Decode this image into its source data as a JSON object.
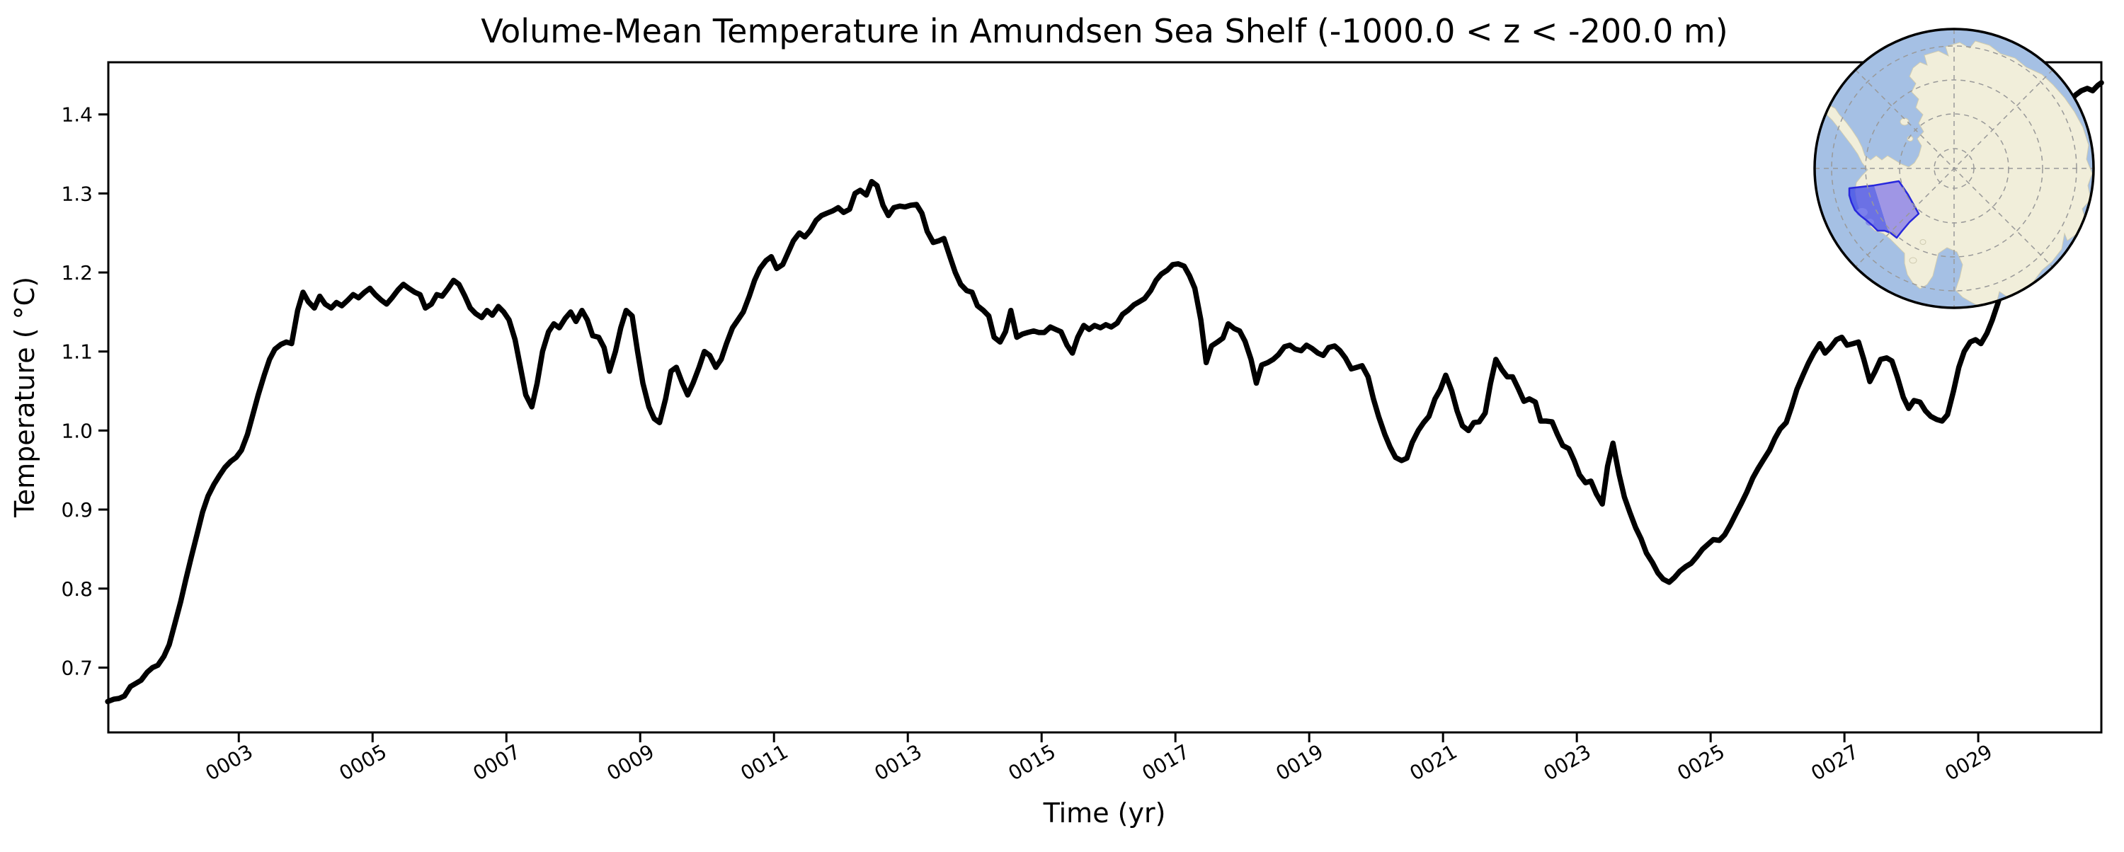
{
  "title": "Volume-Mean Temperature in Amundsen Sea Shelf (-1000.0 < z < -200.0 m)",
  "xlabel": "Time (yr)",
  "ylabel": "Temperature ( °C)",
  "chart_data": {
    "type": "line",
    "title": "Volume-Mean Temperature in Amundsen Sea Shelf (-1000.0 < z < -200.0 m)",
    "xlabel": "Time (yr)",
    "ylabel": "Temperature (°C)",
    "legend": null,
    "grid": false,
    "line_color": "#000000",
    "line_width": 7.5,
    "xlim": [
      1.05,
      30.84
    ],
    "ylim": [
      0.618,
      1.466
    ],
    "x_ticks": {
      "years": [
        3,
        5,
        7,
        9,
        11,
        13,
        15,
        17,
        19,
        21,
        23,
        25,
        27,
        29
      ],
      "labels": [
        "0003",
        "0005",
        "0007",
        "0009",
        "0011",
        "0013",
        "0015",
        "0017",
        "0019",
        "0021",
        "0023",
        "0025",
        "0027",
        "0029"
      ],
      "rotation_deg": -30
    },
    "y_ticks": {
      "values": [
        0.7,
        0.8,
        0.9,
        1.0,
        1.1,
        1.2,
        1.3,
        1.4
      ],
      "labels": [
        "0.7",
        "0.8",
        "0.9",
        "1.0",
        "1.1",
        "1.2",
        "1.3",
        "1.4"
      ]
    },
    "series": [
      [
        1.04,
        0.657
      ],
      [
        1.13,
        0.66
      ],
      [
        1.21,
        0.661
      ],
      [
        1.29,
        0.664
      ],
      [
        1.38,
        0.676
      ],
      [
        1.46,
        0.68
      ],
      [
        1.54,
        0.684
      ],
      [
        1.63,
        0.694
      ],
      [
        1.71,
        0.7
      ],
      [
        1.79,
        0.703
      ],
      [
        1.88,
        0.714
      ],
      [
        1.96,
        0.729
      ],
      [
        2.04,
        0.754
      ],
      [
        2.13,
        0.783
      ],
      [
        2.21,
        0.812
      ],
      [
        2.29,
        0.84
      ],
      [
        2.38,
        0.87
      ],
      [
        2.46,
        0.897
      ],
      [
        2.54,
        0.917
      ],
      [
        2.63,
        0.932
      ],
      [
        2.71,
        0.943
      ],
      [
        2.79,
        0.953
      ],
      [
        2.88,
        0.961
      ],
      [
        2.96,
        0.966
      ],
      [
        3.04,
        0.975
      ],
      [
        3.13,
        0.995
      ],
      [
        3.21,
        1.02
      ],
      [
        3.29,
        1.045
      ],
      [
        3.38,
        1.07
      ],
      [
        3.46,
        1.09
      ],
      [
        3.54,
        1.103
      ],
      [
        3.63,
        1.109
      ],
      [
        3.71,
        1.112
      ],
      [
        3.79,
        1.11
      ],
      [
        3.88,
        1.152
      ],
      [
        3.96,
        1.175
      ],
      [
        4.04,
        1.163
      ],
      [
        4.13,
        1.155
      ],
      [
        4.21,
        1.17
      ],
      [
        4.29,
        1.16
      ],
      [
        4.38,
        1.155
      ],
      [
        4.46,
        1.162
      ],
      [
        4.54,
        1.158
      ],
      [
        4.63,
        1.165
      ],
      [
        4.71,
        1.172
      ],
      [
        4.79,
        1.168
      ],
      [
        4.88,
        1.175
      ],
      [
        4.96,
        1.18
      ],
      [
        5.04,
        1.172
      ],
      [
        5.13,
        1.165
      ],
      [
        5.21,
        1.16
      ],
      [
        5.29,
        1.168
      ],
      [
        5.38,
        1.178
      ],
      [
        5.46,
        1.185
      ],
      [
        5.54,
        1.18
      ],
      [
        5.63,
        1.175
      ],
      [
        5.71,
        1.172
      ],
      [
        5.79,
        1.155
      ],
      [
        5.88,
        1.16
      ],
      [
        5.96,
        1.172
      ],
      [
        6.04,
        1.17
      ],
      [
        6.13,
        1.18
      ],
      [
        6.21,
        1.19
      ],
      [
        6.29,
        1.185
      ],
      [
        6.38,
        1.17
      ],
      [
        6.46,
        1.155
      ],
      [
        6.54,
        1.148
      ],
      [
        6.63,
        1.143
      ],
      [
        6.71,
        1.152
      ],
      [
        6.79,
        1.146
      ],
      [
        6.88,
        1.157
      ],
      [
        6.96,
        1.15
      ],
      [
        7.04,
        1.14
      ],
      [
        7.13,
        1.115
      ],
      [
        7.21,
        1.08
      ],
      [
        7.29,
        1.045
      ],
      [
        7.38,
        1.03
      ],
      [
        7.46,
        1.06
      ],
      [
        7.54,
        1.1
      ],
      [
        7.63,
        1.125
      ],
      [
        7.71,
        1.135
      ],
      [
        7.79,
        1.13
      ],
      [
        7.88,
        1.142
      ],
      [
        7.96,
        1.15
      ],
      [
        8.04,
        1.138
      ],
      [
        8.13,
        1.152
      ],
      [
        8.21,
        1.14
      ],
      [
        8.29,
        1.12
      ],
      [
        8.38,
        1.118
      ],
      [
        8.46,
        1.105
      ],
      [
        8.54,
        1.075
      ],
      [
        8.63,
        1.1
      ],
      [
        8.71,
        1.13
      ],
      [
        8.79,
        1.152
      ],
      [
        8.88,
        1.145
      ],
      [
        8.96,
        1.1
      ],
      [
        9.04,
        1.06
      ],
      [
        9.13,
        1.03
      ],
      [
        9.21,
        1.015
      ],
      [
        9.29,
        1.01
      ],
      [
        9.38,
        1.04
      ],
      [
        9.46,
        1.075
      ],
      [
        9.54,
        1.08
      ],
      [
        9.63,
        1.06
      ],
      [
        9.71,
        1.045
      ],
      [
        9.79,
        1.06
      ],
      [
        9.88,
        1.08
      ],
      [
        9.96,
        1.1
      ],
      [
        10.04,
        1.095
      ],
      [
        10.13,
        1.08
      ],
      [
        10.21,
        1.09
      ],
      [
        10.29,
        1.11
      ],
      [
        10.38,
        1.13
      ],
      [
        10.46,
        1.14
      ],
      [
        10.54,
        1.15
      ],
      [
        10.63,
        1.17
      ],
      [
        10.71,
        1.19
      ],
      [
        10.79,
        1.205
      ],
      [
        10.88,
        1.215
      ],
      [
        10.96,
        1.22
      ],
      [
        11.04,
        1.205
      ],
      [
        11.13,
        1.21
      ],
      [
        11.21,
        1.225
      ],
      [
        11.29,
        1.24
      ],
      [
        11.38,
        1.25
      ],
      [
        11.46,
        1.245
      ],
      [
        11.54,
        1.253
      ],
      [
        11.63,
        1.266
      ],
      [
        11.71,
        1.272
      ],
      [
        11.79,
        1.275
      ],
      [
        11.88,
        1.278
      ],
      [
        11.96,
        1.282
      ],
      [
        12.04,
        1.276
      ],
      [
        12.13,
        1.28
      ],
      [
        12.21,
        1.3
      ],
      [
        12.29,
        1.304
      ],
      [
        12.38,
        1.298
      ],
      [
        12.46,
        1.315
      ],
      [
        12.54,
        1.31
      ],
      [
        12.63,
        1.285
      ],
      [
        12.71,
        1.272
      ],
      [
        12.79,
        1.282
      ],
      [
        12.88,
        1.284
      ],
      [
        12.96,
        1.283
      ],
      [
        13.04,
        1.285
      ],
      [
        13.13,
        1.286
      ],
      [
        13.21,
        1.275
      ],
      [
        13.29,
        1.252
      ],
      [
        13.38,
        1.238
      ],
      [
        13.46,
        1.24
      ],
      [
        13.54,
        1.243
      ],
      [
        13.63,
        1.22
      ],
      [
        13.71,
        1.2
      ],
      [
        13.79,
        1.185
      ],
      [
        13.88,
        1.177
      ],
      [
        13.96,
        1.175
      ],
      [
        14.04,
        1.158
      ],
      [
        14.13,
        1.152
      ],
      [
        14.21,
        1.145
      ],
      [
        14.29,
        1.118
      ],
      [
        14.38,
        1.112
      ],
      [
        14.46,
        1.125
      ],
      [
        14.54,
        1.152
      ],
      [
        14.63,
        1.118
      ],
      [
        14.71,
        1.122
      ],
      [
        14.79,
        1.124
      ],
      [
        14.88,
        1.126
      ],
      [
        14.96,
        1.124
      ],
      [
        15.04,
        1.124
      ],
      [
        15.13,
        1.131
      ],
      [
        15.21,
        1.128
      ],
      [
        15.29,
        1.125
      ],
      [
        15.38,
        1.108
      ],
      [
        15.46,
        1.098
      ],
      [
        15.54,
        1.118
      ],
      [
        15.63,
        1.133
      ],
      [
        15.71,
        1.128
      ],
      [
        15.79,
        1.133
      ],
      [
        15.88,
        1.13
      ],
      [
        15.96,
        1.134
      ],
      [
        16.04,
        1.131
      ],
      [
        16.13,
        1.136
      ],
      [
        16.21,
        1.147
      ],
      [
        16.29,
        1.152
      ],
      [
        16.38,
        1.159
      ],
      [
        16.46,
        1.163
      ],
      [
        16.54,
        1.167
      ],
      [
        16.63,
        1.177
      ],
      [
        16.71,
        1.19
      ],
      [
        16.79,
        1.198
      ],
      [
        16.88,
        1.203
      ],
      [
        16.96,
        1.21
      ],
      [
        17.04,
        1.211
      ],
      [
        17.13,
        1.208
      ],
      [
        17.21,
        1.196
      ],
      [
        17.29,
        1.18
      ],
      [
        17.38,
        1.14
      ],
      [
        17.46,
        1.086
      ],
      [
        17.54,
        1.107
      ],
      [
        17.63,
        1.112
      ],
      [
        17.71,
        1.117
      ],
      [
        17.79,
        1.135
      ],
      [
        17.88,
        1.129
      ],
      [
        17.96,
        1.126
      ],
      [
        18.04,
        1.113
      ],
      [
        18.13,
        1.09
      ],
      [
        18.21,
        1.06
      ],
      [
        18.29,
        1.083
      ],
      [
        18.38,
        1.086
      ],
      [
        18.46,
        1.09
      ],
      [
        18.54,
        1.096
      ],
      [
        18.63,
        1.106
      ],
      [
        18.71,
        1.108
      ],
      [
        18.79,
        1.103
      ],
      [
        18.88,
        1.101
      ],
      [
        18.96,
        1.108
      ],
      [
        19.04,
        1.104
      ],
      [
        19.13,
        1.098
      ],
      [
        19.21,
        1.095
      ],
      [
        19.29,
        1.105
      ],
      [
        19.38,
        1.107
      ],
      [
        19.46,
        1.101
      ],
      [
        19.54,
        1.092
      ],
      [
        19.63,
        1.078
      ],
      [
        19.71,
        1.08
      ],
      [
        19.79,
        1.082
      ],
      [
        19.88,
        1.068
      ],
      [
        19.96,
        1.04
      ],
      [
        20.04,
        1.017
      ],
      [
        20.13,
        0.995
      ],
      [
        20.21,
        0.979
      ],
      [
        20.29,
        0.966
      ],
      [
        20.38,
        0.962
      ],
      [
        20.46,
        0.965
      ],
      [
        20.54,
        0.985
      ],
      [
        20.63,
        1.0
      ],
      [
        20.71,
        1.01
      ],
      [
        20.79,
        1.018
      ],
      [
        20.88,
        1.04
      ],
      [
        20.96,
        1.052
      ],
      [
        21.04,
        1.07
      ],
      [
        21.13,
        1.05
      ],
      [
        21.21,
        1.025
      ],
      [
        21.29,
        1.006
      ],
      [
        21.38,
        1.0
      ],
      [
        21.46,
        1.01
      ],
      [
        21.54,
        1.011
      ],
      [
        21.63,
        1.022
      ],
      [
        21.71,
        1.06
      ],
      [
        21.79,
        1.09
      ],
      [
        21.88,
        1.077
      ],
      [
        21.96,
        1.068
      ],
      [
        22.04,
        1.068
      ],
      [
        22.13,
        1.052
      ],
      [
        22.21,
        1.037
      ],
      [
        22.29,
        1.04
      ],
      [
        22.38,
        1.036
      ],
      [
        22.46,
        1.012
      ],
      [
        22.54,
        1.012
      ],
      [
        22.63,
        1.011
      ],
      [
        22.71,
        0.995
      ],
      [
        22.79,
        0.981
      ],
      [
        22.88,
        0.977
      ],
      [
        22.96,
        0.962
      ],
      [
        23.04,
        0.944
      ],
      [
        23.13,
        0.934
      ],
      [
        23.21,
        0.936
      ],
      [
        23.29,
        0.92
      ],
      [
        23.38,
        0.907
      ],
      [
        23.46,
        0.955
      ],
      [
        23.54,
        0.984
      ],
      [
        23.63,
        0.945
      ],
      [
        23.71,
        0.916
      ],
      [
        23.79,
        0.897
      ],
      [
        23.88,
        0.877
      ],
      [
        23.96,
        0.863
      ],
      [
        24.04,
        0.845
      ],
      [
        24.13,
        0.833
      ],
      [
        24.21,
        0.82
      ],
      [
        24.29,
        0.812
      ],
      [
        24.38,
        0.808
      ],
      [
        24.46,
        0.814
      ],
      [
        24.54,
        0.822
      ],
      [
        24.63,
        0.828
      ],
      [
        24.71,
        0.832
      ],
      [
        24.79,
        0.84
      ],
      [
        24.88,
        0.85
      ],
      [
        24.96,
        0.856
      ],
      [
        25.04,
        0.862
      ],
      [
        25.13,
        0.861
      ],
      [
        25.21,
        0.868
      ],
      [
        25.29,
        0.88
      ],
      [
        25.38,
        0.895
      ],
      [
        25.46,
        0.908
      ],
      [
        25.54,
        0.922
      ],
      [
        25.63,
        0.94
      ],
      [
        25.71,
        0.952
      ],
      [
        25.79,
        0.963
      ],
      [
        25.88,
        0.975
      ],
      [
        25.96,
        0.99
      ],
      [
        26.04,
        1.002
      ],
      [
        26.13,
        1.01
      ],
      [
        26.21,
        1.03
      ],
      [
        26.29,
        1.052
      ],
      [
        26.38,
        1.07
      ],
      [
        26.46,
        1.085
      ],
      [
        26.54,
        1.098
      ],
      [
        26.63,
        1.11
      ],
      [
        26.71,
        1.098
      ],
      [
        26.79,
        1.105
      ],
      [
        26.88,
        1.115
      ],
      [
        26.96,
        1.118
      ],
      [
        27.04,
        1.108
      ],
      [
        27.13,
        1.11
      ],
      [
        27.21,
        1.112
      ],
      [
        27.29,
        1.09
      ],
      [
        27.38,
        1.062
      ],
      [
        27.46,
        1.075
      ],
      [
        27.54,
        1.09
      ],
      [
        27.63,
        1.092
      ],
      [
        27.71,
        1.088
      ],
      [
        27.79,
        1.068
      ],
      [
        27.88,
        1.042
      ],
      [
        27.96,
        1.028
      ],
      [
        28.04,
        1.038
      ],
      [
        28.13,
        1.036
      ],
      [
        28.21,
        1.025
      ],
      [
        28.29,
        1.018
      ],
      [
        28.38,
        1.014
      ],
      [
        28.46,
        1.012
      ],
      [
        28.54,
        1.02
      ],
      [
        28.63,
        1.05
      ],
      [
        28.71,
        1.08
      ],
      [
        28.79,
        1.1
      ],
      [
        28.88,
        1.112
      ],
      [
        28.96,
        1.115
      ],
      [
        29.04,
        1.11
      ],
      [
        29.13,
        1.123
      ],
      [
        29.21,
        1.14
      ],
      [
        29.29,
        1.16
      ],
      [
        29.38,
        1.185
      ],
      [
        29.46,
        1.205
      ],
      [
        29.54,
        1.228
      ],
      [
        29.63,
        1.25
      ],
      [
        29.71,
        1.273
      ],
      [
        29.79,
        1.295
      ],
      [
        29.88,
        1.318
      ],
      [
        29.96,
        1.34
      ],
      [
        30.04,
        1.36
      ],
      [
        30.13,
        1.378
      ],
      [
        30.21,
        1.394
      ],
      [
        30.29,
        1.408
      ],
      [
        30.38,
        1.418
      ],
      [
        30.46,
        1.425
      ],
      [
        30.54,
        1.43
      ],
      [
        30.63,
        1.433
      ],
      [
        30.71,
        1.43
      ],
      [
        30.79,
        1.437
      ],
      [
        30.84,
        1.44
      ]
    ]
  },
  "inset_map": {
    "name": "antarctica-polar-stereographic-inset",
    "highlighted_region": "Amundsen Sea Shelf",
    "colors": {
      "ocean": "#a5c0e4",
      "land": "#f1eeda",
      "land_edge": "#cfcbb0",
      "graticule": "#999999",
      "region_dark": "#3d47e8",
      "region_light": "#968ce6",
      "region_outline": "#2828dc",
      "border": "#000000"
    }
  }
}
